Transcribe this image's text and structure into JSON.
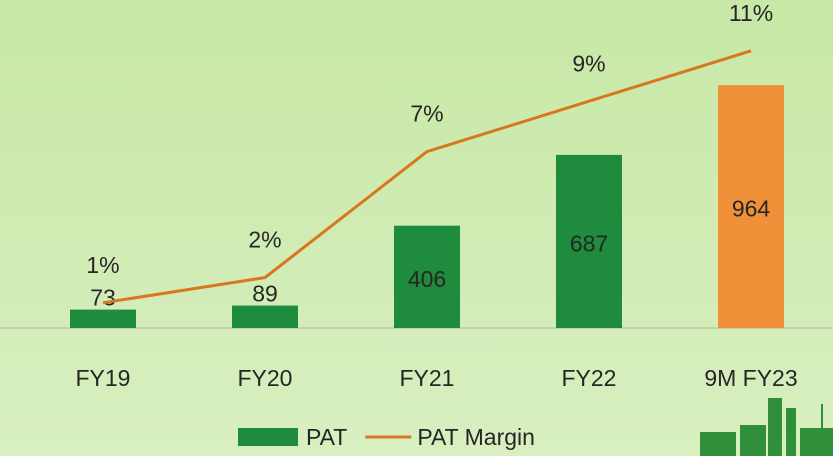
{
  "chart_data": {
    "type": "bar-line",
    "categories": [
      "FY19",
      "FY20",
      "FY21",
      "FY22",
      "9M FY23"
    ],
    "series": [
      {
        "name": "PAT",
        "type": "bar",
        "color": "#1e8c3c",
        "colors": [
          "#1e8c3c",
          "#1e8c3c",
          "#1e8c3c",
          "#1e8c3c",
          "#f0913a"
        ],
        "values": [
          73,
          89,
          406,
          687,
          964
        ]
      },
      {
        "name": "PAT Margin",
        "type": "line",
        "axis": "y2",
        "color": "#d9771f",
        "values": [
          1,
          2,
          7,
          9,
          11
        ],
        "value_labels": [
          "1%",
          "2%",
          "7%",
          "9%",
          "11%"
        ]
      }
    ],
    "ylim": [
      0,
      1000
    ],
    "y2lim": [
      0,
      10
    ],
    "legend": "bottom"
  }
}
